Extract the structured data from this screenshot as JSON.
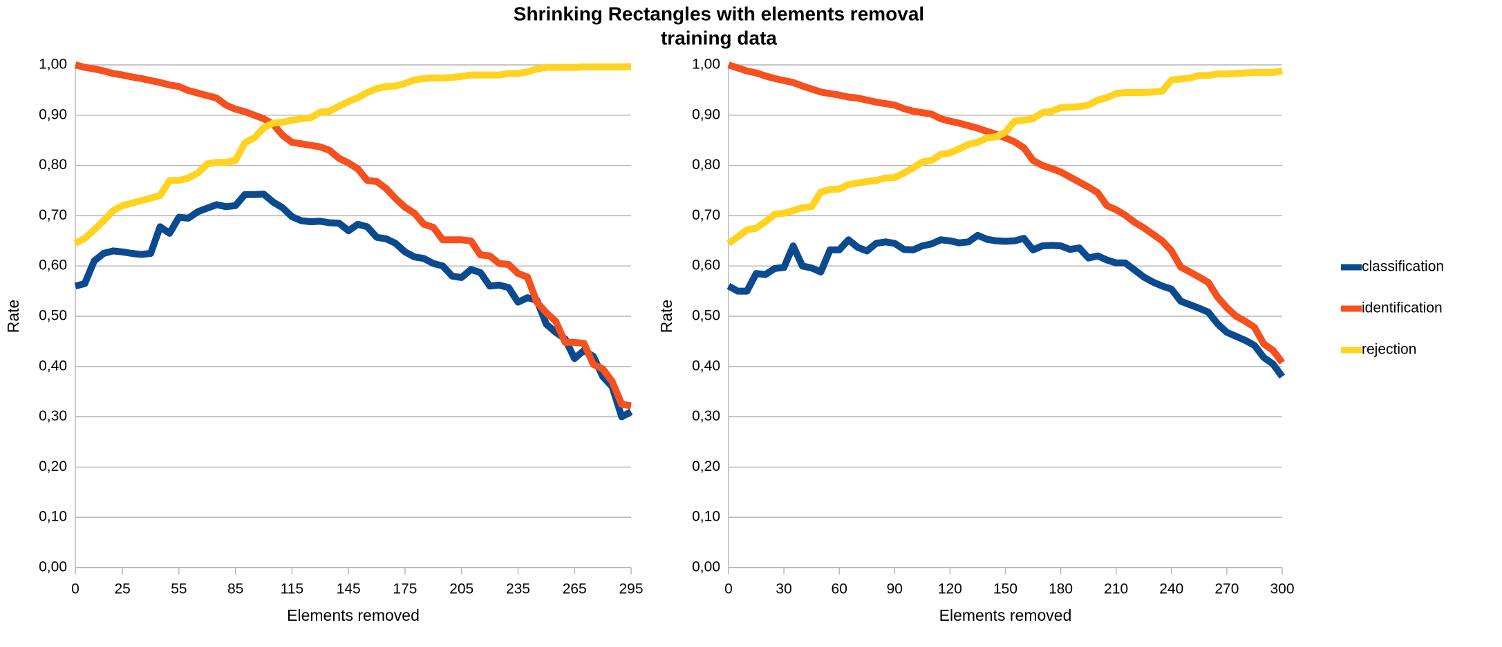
{
  "title": "Shrinking Rectangles with elements removal",
  "subtitle": "training data",
  "legend": "right",
  "chart_data": [
    {
      "type": "line",
      "y_label": "Rate",
      "x_label": "Elements removed",
      "xlim": [
        0,
        295
      ],
      "xticks": [
        0,
        25,
        55,
        85,
        115,
        145,
        175,
        205,
        235,
        265,
        295
      ],
      "ylim": [
        0,
        1
      ],
      "yticks": [
        {
          "value": 0,
          "label": "0,00"
        },
        {
          "value": 0.1,
          "label": "0,10"
        },
        {
          "value": 0.2,
          "label": "0,20"
        },
        {
          "value": 0.3,
          "label": "0,30"
        },
        {
          "value": 0.4,
          "label": "0,40"
        },
        {
          "value": 0.5,
          "label": "0,50"
        },
        {
          "value": 0.6,
          "label": "0,60"
        },
        {
          "value": 0.7,
          "label": "0,70"
        },
        {
          "value": 0.8,
          "label": "0,80"
        },
        {
          "value": 0.9,
          "label": "0,90"
        },
        {
          "value": 1,
          "label": "1,00"
        }
      ],
      "grid": true,
      "x": [
        0,
        5,
        10,
        15,
        20,
        25,
        30,
        35,
        40,
        45,
        50,
        55,
        60,
        65,
        70,
        75,
        80,
        85,
        90,
        95,
        100,
        105,
        110,
        115,
        120,
        125,
        130,
        135,
        140,
        145,
        150,
        155,
        160,
        165,
        170,
        175,
        180,
        185,
        190,
        195,
        200,
        205,
        210,
        215,
        220,
        225,
        230,
        235,
        240,
        245,
        250,
        255,
        260,
        265,
        270,
        275,
        280,
        285,
        290,
        295
      ],
      "series": [
        {
          "name": "classification",
          "color": "#0b4a8e",
          "values": [
            0.56,
            0.565,
            0.61,
            0.625,
            0.63,
            0.628,
            0.625,
            0.623,
            0.625,
            0.678,
            0.665,
            0.697,
            0.695,
            0.708,
            0.715,
            0.722,
            0.718,
            0.72,
            0.742,
            0.742,
            0.743,
            0.727,
            0.716,
            0.698,
            0.69,
            0.688,
            0.689,
            0.686,
            0.685,
            0.67,
            0.683,
            0.678,
            0.657,
            0.654,
            0.645,
            0.628,
            0.618,
            0.615,
            0.605,
            0.6,
            0.58,
            0.577,
            0.593,
            0.587,
            0.56,
            0.562,
            0.557,
            0.528,
            0.537,
            0.532,
            0.484,
            0.468,
            0.455,
            0.416,
            0.432,
            0.42,
            0.38,
            0.36,
            0.3,
            0.31
          ]
        },
        {
          "name": "identification",
          "color": "#f5501e",
          "values": [
            1.0,
            0.995,
            0.992,
            0.988,
            0.983,
            0.98,
            0.976,
            0.973,
            0.969,
            0.965,
            0.96,
            0.957,
            0.949,
            0.944,
            0.939,
            0.934,
            0.92,
            0.912,
            0.907,
            0.9,
            0.893,
            0.882,
            0.86,
            0.846,
            0.843,
            0.84,
            0.837,
            0.83,
            0.814,
            0.805,
            0.793,
            0.77,
            0.768,
            0.754,
            0.734,
            0.717,
            0.705,
            0.683,
            0.677,
            0.652,
            0.652,
            0.652,
            0.65,
            0.622,
            0.62,
            0.605,
            0.603,
            0.585,
            0.578,
            0.528,
            0.507,
            0.49,
            0.448,
            0.448,
            0.446,
            0.404,
            0.395,
            0.37,
            0.325,
            0.322
          ]
        },
        {
          "name": "rejection",
          "color": "#ffd320",
          "values": [
            0.645,
            0.655,
            0.672,
            0.69,
            0.71,
            0.72,
            0.725,
            0.73,
            0.735,
            0.74,
            0.77,
            0.77,
            0.775,
            0.785,
            0.803,
            0.806,
            0.806,
            0.81,
            0.845,
            0.855,
            0.875,
            0.884,
            0.886,
            0.89,
            0.893,
            0.895,
            0.906,
            0.908,
            0.918,
            0.927,
            0.935,
            0.945,
            0.953,
            0.957,
            0.958,
            0.963,
            0.97,
            0.973,
            0.974,
            0.974,
            0.975,
            0.977,
            0.98,
            0.98,
            0.98,
            0.98,
            0.983,
            0.983,
            0.986,
            0.992,
            0.995,
            0.995,
            0.995,
            0.995,
            0.996,
            0.996,
            0.996,
            0.996,
            0.996,
            0.997
          ]
        }
      ]
    },
    {
      "type": "line",
      "y_label": "Rate",
      "x_label": "Elements removed",
      "xlim": [
        0,
        300
      ],
      "xticks": [
        0,
        30,
        60,
        90,
        120,
        150,
        180,
        210,
        240,
        270,
        300
      ],
      "ylim": [
        0,
        1
      ],
      "yticks": [
        {
          "value": 0,
          "label": "0,00"
        },
        {
          "value": 0.1,
          "label": "0,10"
        },
        {
          "value": 0.2,
          "label": "0,20"
        },
        {
          "value": 0.3,
          "label": "0,30"
        },
        {
          "value": 0.4,
          "label": "0,40"
        },
        {
          "value": 0.5,
          "label": "0,50"
        },
        {
          "value": 0.6,
          "label": "0,60"
        },
        {
          "value": 0.7,
          "label": "0,70"
        },
        {
          "value": 0.8,
          "label": "0,80"
        },
        {
          "value": 0.9,
          "label": "0,90"
        },
        {
          "value": 1,
          "label": "1,00"
        }
      ],
      "grid": true,
      "x": [
        0,
        5,
        10,
        15,
        20,
        25,
        30,
        35,
        40,
        45,
        50,
        55,
        60,
        65,
        70,
        75,
        80,
        85,
        90,
        95,
        100,
        105,
        110,
        115,
        120,
        125,
        130,
        135,
        140,
        145,
        150,
        155,
        160,
        165,
        170,
        175,
        180,
        185,
        190,
        195,
        200,
        205,
        210,
        215,
        220,
        225,
        230,
        235,
        240,
        245,
        250,
        255,
        260,
        265,
        270,
        275,
        280,
        285,
        290,
        295,
        300
      ],
      "series": [
        {
          "color": "#0b4a8e",
          "values": [
            0.56,
            0.55,
            0.55,
            0.585,
            0.583,
            0.595,
            0.597,
            0.64,
            0.6,
            0.596,
            0.588,
            0.632,
            0.632,
            0.652,
            0.637,
            0.63,
            0.645,
            0.648,
            0.645,
            0.633,
            0.632,
            0.64,
            0.644,
            0.652,
            0.65,
            0.646,
            0.648,
            0.661,
            0.653,
            0.65,
            0.649,
            0.65,
            0.655,
            0.632,
            0.64,
            0.641,
            0.64,
            0.633,
            0.636,
            0.616,
            0.62,
            0.612,
            0.606,
            0.606,
            0.592,
            0.578,
            0.568,
            0.56,
            0.554,
            0.53,
            0.523,
            0.516,
            0.508,
            0.485,
            0.468,
            0.46,
            0.452,
            0.442,
            0.418,
            0.405,
            0.38
          ]
        },
        {
          "color": "#f5501e",
          "values": [
            1.0,
            0.994,
            0.988,
            0.984,
            0.978,
            0.973,
            0.969,
            0.965,
            0.958,
            0.952,
            0.946,
            0.943,
            0.94,
            0.936,
            0.934,
            0.93,
            0.926,
            0.923,
            0.92,
            0.913,
            0.908,
            0.905,
            0.902,
            0.893,
            0.888,
            0.884,
            0.879,
            0.874,
            0.868,
            0.862,
            0.855,
            0.847,
            0.835,
            0.81,
            0.8,
            0.794,
            0.787,
            0.777,
            0.767,
            0.757,
            0.746,
            0.72,
            0.712,
            0.701,
            0.687,
            0.676,
            0.663,
            0.65,
            0.63,
            0.598,
            0.588,
            0.578,
            0.567,
            0.538,
            0.517,
            0.5,
            0.49,
            0.478,
            0.445,
            0.432,
            0.408
          ]
        },
        {
          "color": "#ffd320",
          "values": [
            0.645,
            0.658,
            0.672,
            0.675,
            0.688,
            0.703,
            0.705,
            0.71,
            0.716,
            0.718,
            0.747,
            0.752,
            0.753,
            0.762,
            0.765,
            0.768,
            0.77,
            0.775,
            0.776,
            0.785,
            0.795,
            0.807,
            0.81,
            0.822,
            0.825,
            0.833,
            0.842,
            0.846,
            0.855,
            0.857,
            0.866,
            0.888,
            0.89,
            0.893,
            0.905,
            0.908,
            0.915,
            0.916,
            0.917,
            0.92,
            0.93,
            0.935,
            0.943,
            0.945,
            0.945,
            0.945,
            0.946,
            0.948,
            0.97,
            0.972,
            0.974,
            0.979,
            0.979,
            0.982,
            0.982,
            0.983,
            0.984,
            0.985,
            0.985,
            0.985,
            0.988
          ]
        }
      ]
    }
  ]
}
